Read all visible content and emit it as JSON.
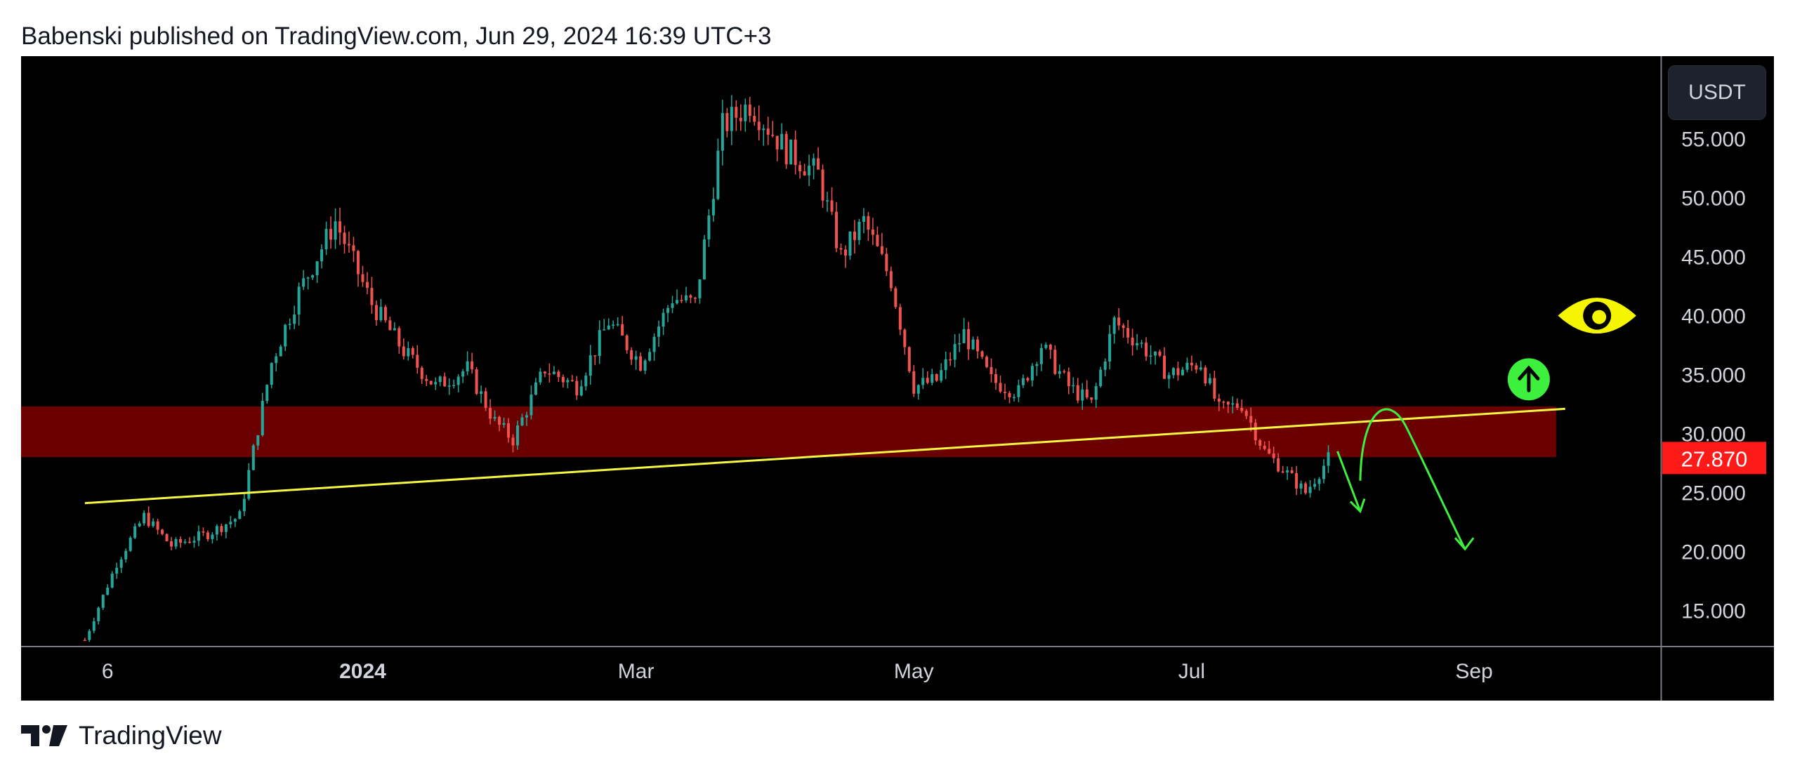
{
  "header": {
    "text": "Babenski published on TradingView.com, Jun 29, 2024 16:39 UTC+3"
  },
  "footer": {
    "brand": "TradingView"
  },
  "colors": {
    "background": "#000000",
    "up_candle": "#26a69a",
    "down_candle": "#ef5350",
    "zone": "#6b0000",
    "trendline": "#f5f542",
    "arrows": "#3ef03e",
    "price_badge": "#ff1a1a",
    "eye": "#f5f500",
    "axis_text": "#d1d4dc"
  },
  "chart_data": {
    "type": "candlestick",
    "title": "",
    "quote_currency": "USDT",
    "current_price": "27.870",
    "ylim": [
      12000,
      62000
    ],
    "y_ticks": [
      15000,
      20000,
      25000,
      30000,
      35000,
      40000,
      45000,
      50000,
      55000
    ],
    "y_tick_labels": [
      "15.000",
      "20.000",
      "25.000",
      "30.000",
      "35.000",
      "40.000",
      "45.000",
      "50.000",
      "55.000"
    ],
    "x_ticks": [
      {
        "label": "6",
        "date": "2023-11-06",
        "bold": false
      },
      {
        "label": "2024",
        "date": "2024-01-01",
        "bold": true
      },
      {
        "label": "Mar",
        "date": "2024-03-01",
        "bold": false
      },
      {
        "label": "May",
        "date": "2024-05-01",
        "bold": false
      },
      {
        "label": "Jul",
        "date": "2024-07-01",
        "bold": false
      },
      {
        "label": "Sep",
        "date": "2024-09-01",
        "bold": false
      }
    ],
    "x_range": [
      "2023-10-18",
      "2024-10-12"
    ],
    "price_path": [
      [
        "2023-11-01",
        12500
      ],
      [
        "2023-11-08",
        19000
      ],
      [
        "2023-11-14",
        23000
      ],
      [
        "2023-11-20",
        20500
      ],
      [
        "2023-11-28",
        21500
      ],
      [
        "2023-12-05",
        23000
      ],
      [
        "2023-12-12",
        36000
      ],
      [
        "2023-12-18",
        42000
      ],
      [
        "2023-12-26",
        48000
      ],
      [
        "2024-01-03",
        41000
      ],
      [
        "2024-01-10",
        37000
      ],
      [
        "2024-01-17",
        34000
      ],
      [
        "2024-01-24",
        35500
      ],
      [
        "2024-01-30",
        31000
      ],
      [
        "2024-02-03",
        29500
      ],
      [
        "2024-02-10",
        35500
      ],
      [
        "2024-02-17",
        34000
      ],
      [
        "2024-02-24",
        39500
      ],
      [
        "2024-03-02",
        36000
      ],
      [
        "2024-03-09",
        41500
      ],
      [
        "2024-03-14",
        41000
      ],
      [
        "2024-03-20",
        56000
      ],
      [
        "2024-03-26",
        58000
      ],
      [
        "2024-04-03",
        54000
      ],
      [
        "2024-04-10",
        52000
      ],
      [
        "2024-04-15",
        45000
      ],
      [
        "2024-04-20",
        48000
      ],
      [
        "2024-04-26",
        43000
      ],
      [
        "2024-05-01",
        34000
      ],
      [
        "2024-05-06",
        34500
      ],
      [
        "2024-05-12",
        38500
      ],
      [
        "2024-05-18",
        34500
      ],
      [
        "2024-05-24",
        33500
      ],
      [
        "2024-05-29",
        37500
      ],
      [
        "2024-06-04",
        34000
      ],
      [
        "2024-06-09",
        32500
      ],
      [
        "2024-06-14",
        39500
      ],
      [
        "2024-06-20",
        37500
      ],
      [
        "2024-06-26",
        35000
      ],
      [
        "2024-07-03",
        36000
      ],
      [
        "2024-07-07",
        32000
      ],
      [
        "2024-07-12",
        32500
      ],
      [
        "2024-07-17",
        28500
      ],
      [
        "2024-07-21",
        27000
      ],
      [
        "2024-07-26",
        25000
      ],
      [
        "2024-07-31",
        27870
      ]
    ],
    "annotations": [
      {
        "type": "zone",
        "from": "2023-10-18",
        "to": "2024-09-19",
        "low": 28000,
        "high": 32300
      },
      {
        "type": "trendline",
        "from": [
          "2023-11-01",
          24100
        ],
        "to": [
          "2024-09-21",
          32100
        ]
      },
      {
        "type": "arrow",
        "from": [
          "2024-08-02",
          28500
        ],
        "to": [
          "2024-08-07",
          23400
        ]
      },
      {
        "type": "curved-arrow",
        "from": [
          "2024-08-07",
          26000
        ],
        "peak": [
          "2024-08-11",
          31100
        ],
        "to": [
          "2024-08-30",
          20200
        ]
      },
      {
        "type": "up-arrow-icon",
        "at": [
          "2024-09-13",
          34600
        ]
      },
      {
        "type": "eye-icon",
        "at": [
          "2024-09-28",
          40000
        ]
      }
    ]
  }
}
